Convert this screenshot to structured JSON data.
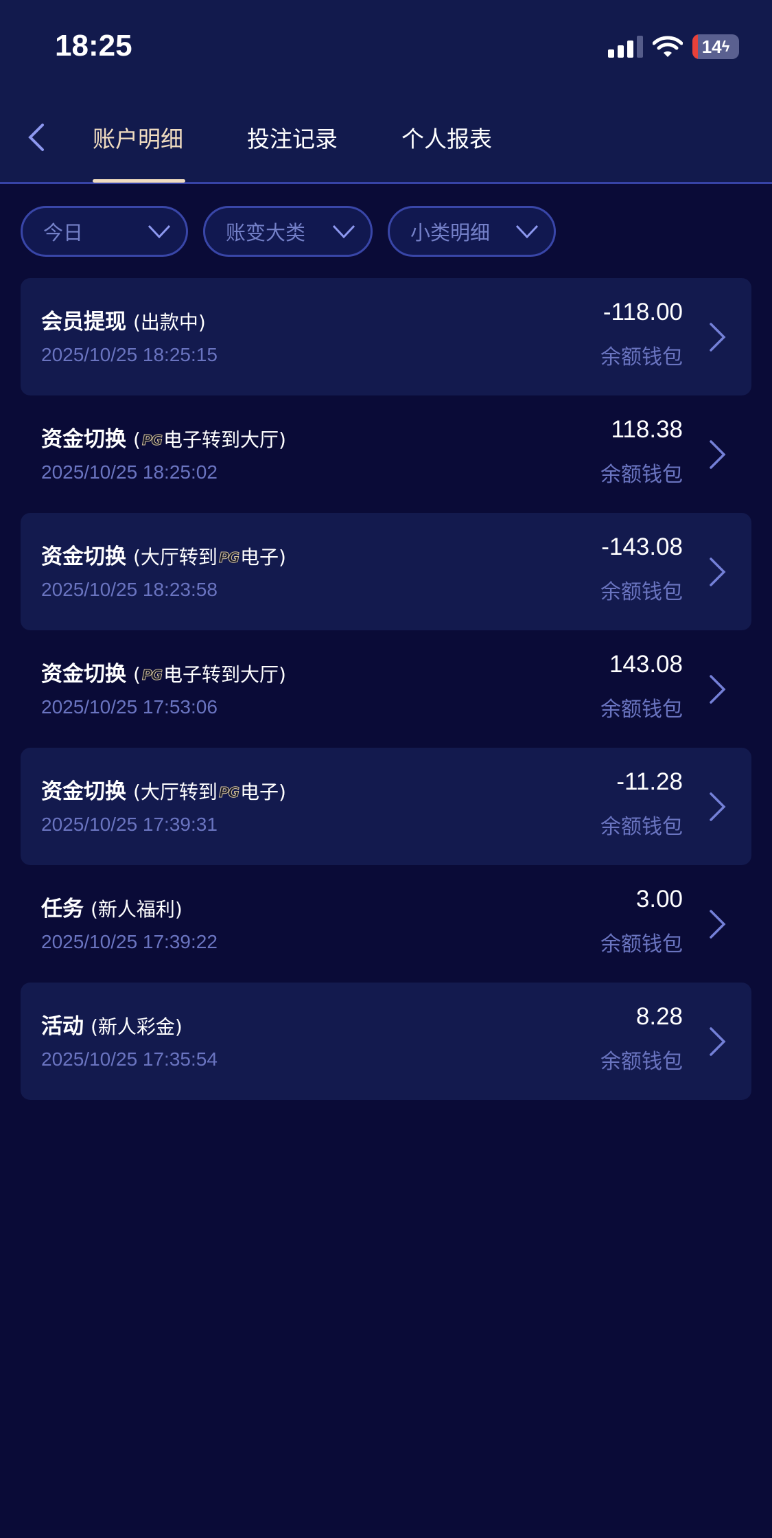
{
  "status_bar": {
    "time": "18:25",
    "battery": "14"
  },
  "header": {
    "tabs": [
      {
        "label": "账户明细",
        "active": true
      },
      {
        "label": "投注记录"
      },
      {
        "label": "个人报表"
      }
    ]
  },
  "filters": [
    {
      "label": "今日"
    },
    {
      "label": "账变大类"
    },
    {
      "label": "小类明细"
    }
  ],
  "colors": {
    "accent": "#f0dcc0",
    "header_bg": "#121a4d",
    "page_bg": "#0a0b37",
    "muted": "#6a74c0"
  },
  "records": [
    {
      "type": "会员提现",
      "detail_pre": "(出款中)",
      "logo": "",
      "detail_post": "",
      "date": "2025/10/25 18:25:15",
      "amount": "-118.00",
      "wallet": "余额钱包"
    },
    {
      "type": "资金切换",
      "detail_pre": "(",
      "logo": "PG",
      "detail_post": "电子转到大厅)",
      "date": "2025/10/25 18:25:02",
      "amount": "118.38",
      "wallet": "余额钱包"
    },
    {
      "type": "资金切换",
      "detail_pre": "(大厅转到",
      "logo": "PG",
      "detail_post": "电子)",
      "date": "2025/10/25 18:23:58",
      "amount": "-143.08",
      "wallet": "余额钱包"
    },
    {
      "type": "资金切换",
      "detail_pre": "(",
      "logo": "PG",
      "detail_post": "电子转到大厅)",
      "date": "2025/10/25 17:53:06",
      "amount": "143.08",
      "wallet": "余额钱包"
    },
    {
      "type": "资金切换",
      "detail_pre": "(大厅转到",
      "logo": "PG",
      "detail_post": "电子)",
      "date": "2025/10/25 17:39:31",
      "amount": "-11.28",
      "wallet": "余额钱包"
    },
    {
      "type": "任务",
      "detail_pre": "(新人福利)",
      "logo": "",
      "detail_post": "",
      "date": "2025/10/25 17:39:22",
      "amount": "3.00",
      "wallet": "余额钱包"
    },
    {
      "type": "活动",
      "detail_pre": "(新人彩金)",
      "logo": "",
      "detail_post": "",
      "date": "2025/10/25 17:35:54",
      "amount": "8.28",
      "wallet": "余额钱包"
    }
  ]
}
